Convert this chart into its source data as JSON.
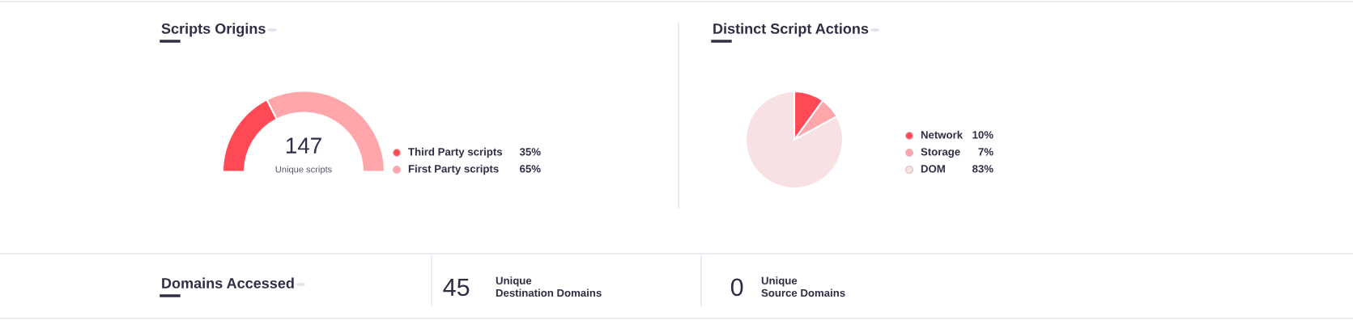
{
  "chart_data": [
    {
      "type": "donut",
      "title": "Scripts Origins",
      "categories": [
        "Third Party scripts",
        "First Party scripts"
      ],
      "values": [
        35,
        65
      ],
      "colors": [
        "#ff4a55",
        "#ffa6ab"
      ],
      "value_labels": [
        "35%",
        "65%"
      ],
      "legend": "right",
      "annotations": [
        "147",
        "Unique scripts"
      ]
    },
    {
      "type": "pie",
      "title": "Distinct Script Actions",
      "categories": [
        "Network",
        "Storage",
        "DOM"
      ],
      "values": [
        10,
        7,
        83
      ],
      "colors": [
        "#ff4a55",
        "#ffa6ab",
        "#f7e1e3"
      ],
      "value_labels": [
        "10%",
        "7%",
        "83%"
      ],
      "legend": "right"
    },
    {
      "type": "other",
      "title": "Domains Accessed",
      "annotations": [
        "45",
        "Unique\nDestination Domains",
        "0",
        "Unique\nSource Domains"
      ]
    }
  ]
}
